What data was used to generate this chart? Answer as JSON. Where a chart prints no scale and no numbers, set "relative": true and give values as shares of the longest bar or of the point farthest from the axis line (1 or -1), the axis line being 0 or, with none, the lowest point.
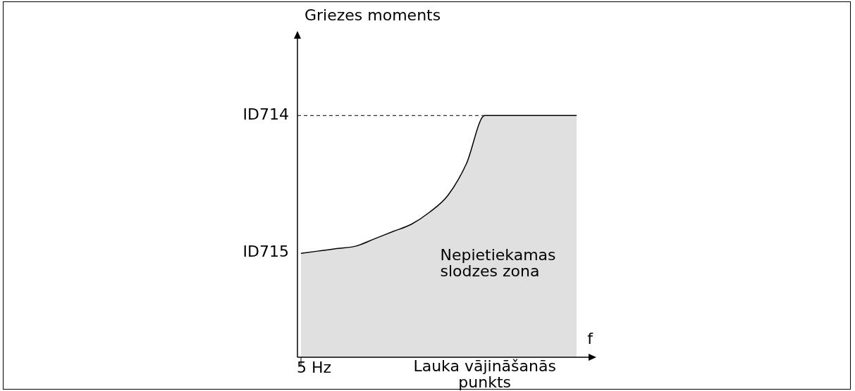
{
  "chart_data": {
    "type": "area",
    "relative": true,
    "xlabel": "f",
    "categories": [
      null,
      null,
      null,
      null,
      null,
      null,
      null,
      null,
      null,
      null,
      null,
      null,
      null,
      null,
      null,
      null
    ],
    "series": [
      {
        "color": "#e0e0e0",
        "values": [
          0.43,
          0.44,
          0.45,
          0.46,
          0.49,
          0.52,
          0.55,
          0.6,
          0.67,
          0.8,
          1,
          1,
          1,
          1,
          1,
          1
        ]
      }
    ],
    "ref_lines": [
      {
        "axis": "y",
        "value": 1,
        "label": "ID714",
        "line_style": "dashed",
        "color": "#000000"
      }
    ],
    "annotations": [
      "Griezes moments",
      "ID715",
      "5 Hz",
      "Lauka vājināšanās punkts",
      "Nepietiekamas slodzes zona"
    ],
    "legend": false
  }
}
